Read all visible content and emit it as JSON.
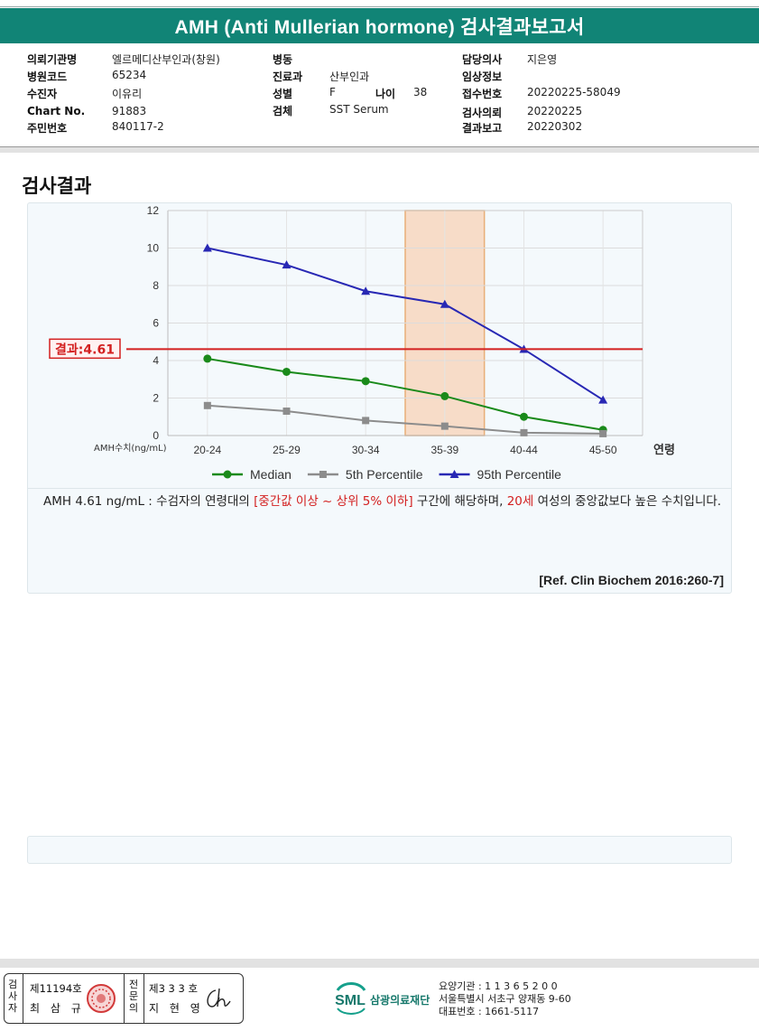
{
  "header": {
    "title": "AMH (Anti Mullerian hormone) 검사결과보고서"
  },
  "info": {
    "inst_label": "의뢰기관명",
    "inst_value": "엘르메디산부인과(창원)",
    "ward_label": "병동",
    "ward_value": "",
    "doctor_label": "담당의사",
    "doctor_value": "지은영",
    "hosp_code_label": "병원코드",
    "hosp_code_value": "65234",
    "dept_label": "진료과",
    "dept_value": "산부인과",
    "clinical_label": "임상정보",
    "clinical_value": "",
    "patient_label": "수진자",
    "patient_value": "이유리",
    "sex_label": "성별",
    "sex_value": "F",
    "age_label": "나이",
    "age_value": "38",
    "receipt_label": "접수번호",
    "receipt_value": "20220225-58049",
    "chart_label": "Chart No.",
    "chart_value": "91883",
    "specimen_label": "검체",
    "specimen_value": "SST Serum",
    "request_label": "검사의뢰",
    "request_value": "20220225",
    "rrn_label": "주민번호",
    "rrn_value": "840117-2",
    "report_label": "결과보고",
    "report_value": "20220302"
  },
  "section": {
    "title": "검사결과"
  },
  "chart_data": {
    "type": "line",
    "categories": [
      "20-24",
      "25-29",
      "30-34",
      "35-39",
      "40-44",
      "45-50"
    ],
    "xlabel": "연령",
    "ylabel": "AMH수치(ng/mL)",
    "ylim": [
      0,
      12
    ],
    "yticks": [
      0,
      2,
      4,
      6,
      8,
      10,
      12
    ],
    "grid": true,
    "legend_position": "bottom",
    "series": [
      {
        "name": "Median",
        "color": "#1a8a1a",
        "marker": "circle",
        "values": [
          4.1,
          3.4,
          2.9,
          2.1,
          1.0,
          0.3
        ]
      },
      {
        "name": "5th Percentile",
        "color": "#8c8c8c",
        "marker": "square",
        "values": [
          1.6,
          1.3,
          0.8,
          0.5,
          0.15,
          0.1
        ]
      },
      {
        "name": "95th Percentile",
        "color": "#2828b4",
        "marker": "triangle",
        "values": [
          10.0,
          9.1,
          7.7,
          7.0,
          4.6,
          1.9
        ]
      }
    ],
    "highlight_category": "35-39",
    "result_line": {
      "value": 4.61,
      "label": "결과:4.61",
      "color": "#d32020"
    }
  },
  "result": {
    "part1": "AMH  4.61 ng/mL : 수검자의 연령대의 ",
    "range_text": "[중간값 이상 ~ 상위 5% 이하]",
    "part2": " 구간에 해당하며, ",
    "age_text": "20세",
    "part3": " 여성의 중앙값보다 높은 수치입니다.",
    "reference": "[Ref. Clin Biochem 2016:260-7]"
  },
  "footer": {
    "tester_vert": "검사자",
    "tester_no": "제11194호",
    "tester_name": "최 삼 규",
    "doctor_vert": "전문의",
    "doctor_no": "제3 3 3 호",
    "doctor_name": "지 현 영",
    "org_logo": "SML",
    "org_name": "삼광의료재단",
    "line1": "요양기관 : 1 1 3 6 5 2 0 0",
    "line2": "서울특별시 서초구 양재동 9-60",
    "line3": "대표번호 : 1661-5117"
  }
}
